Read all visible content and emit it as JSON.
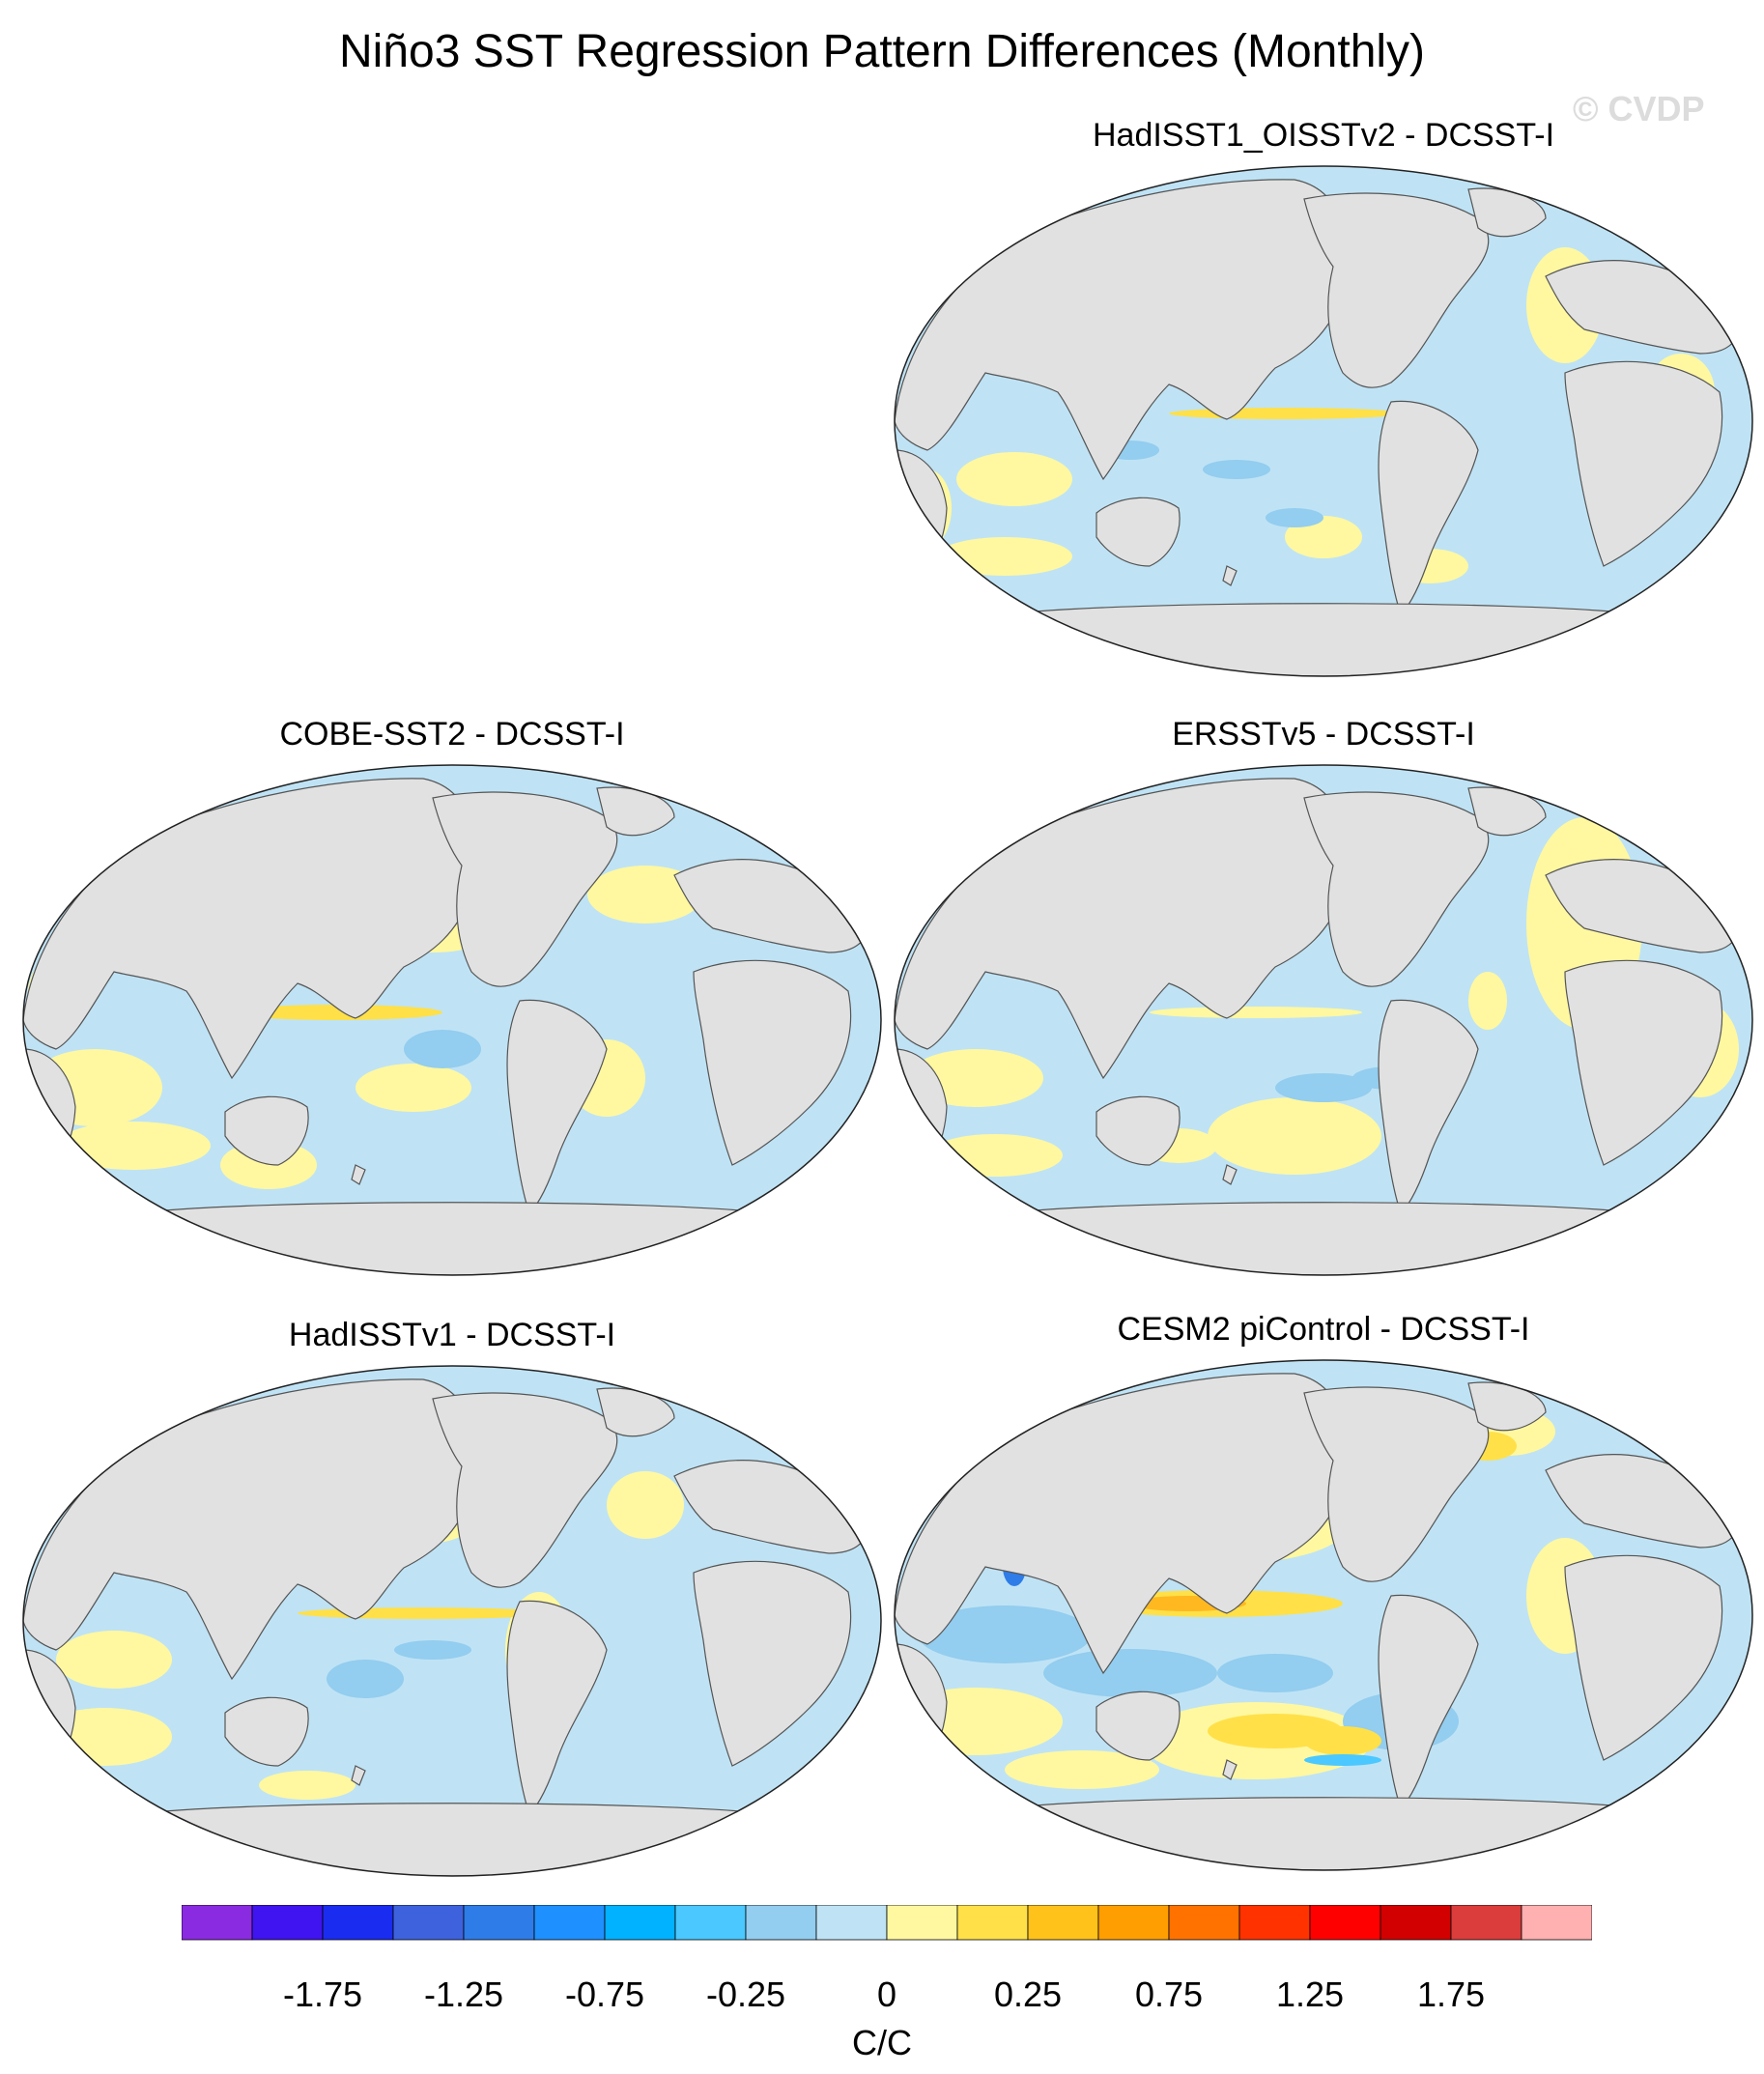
{
  "title": "Niño3 SST Regression Pattern Differences (Monthly)",
  "watermark": "© CVDP",
  "colors": {
    "land": "#e1e1e1",
    "coast": "#555555",
    "neg_small": "#bfe3f5",
    "pos_small": "#fff8a0",
    "neg_mid": "#93cdef",
    "pos_mid": "#ffe048",
    "pos_high": "#ffb820"
  },
  "panels": [
    {
      "id": "hadisst1-oisstv2",
      "label": "HadISST1_OISSTv2 - DCSST-I",
      "equatorial_anomaly": "weak-positive",
      "max_value": 0.4
    },
    {
      "id": "cobe-sst2",
      "label": "COBE-SST2 - DCSST-I",
      "equatorial_anomaly": "weak-positive",
      "max_value": 0.4
    },
    {
      "id": "ersstv5",
      "label": "ERSSTv5 - DCSST-I",
      "equatorial_anomaly": "weak-positive",
      "max_value": 0.3
    },
    {
      "id": "hadisstv1",
      "label": "HadISSTv1 - DCSST-I",
      "equatorial_anomaly": "weak-positive",
      "max_value": 0.3
    },
    {
      "id": "cesm2-picontrol",
      "label": "CESM2 piControl - DCSST-I",
      "equatorial_anomaly": "strong-positive",
      "max_value": 0.75
    }
  ],
  "colorbar": {
    "unit": "C/C",
    "colors": [
      "#8a2be2",
      "#3f14f0",
      "#1a2cf0",
      "#3e62de",
      "#2e7ce8",
      "#1e90ff",
      "#00b2ff",
      "#4ac8ff",
      "#93cdef",
      "#bfe3f5",
      "#fff8a0",
      "#ffe048",
      "#ffc21a",
      "#ff9e00",
      "#ff7200",
      "#ff3200",
      "#ff0000",
      "#d20000",
      "#db3c3c",
      "#ffb0b0"
    ],
    "tick_labels": [
      "-1.75",
      "-1.25",
      "-0.75",
      "-0.25",
      "0",
      "0.25",
      "0.75",
      "1.25",
      "1.75"
    ],
    "tick_boundary_index": [
      1,
      3,
      5,
      7,
      9,
      11,
      13,
      15,
      17
    ]
  }
}
